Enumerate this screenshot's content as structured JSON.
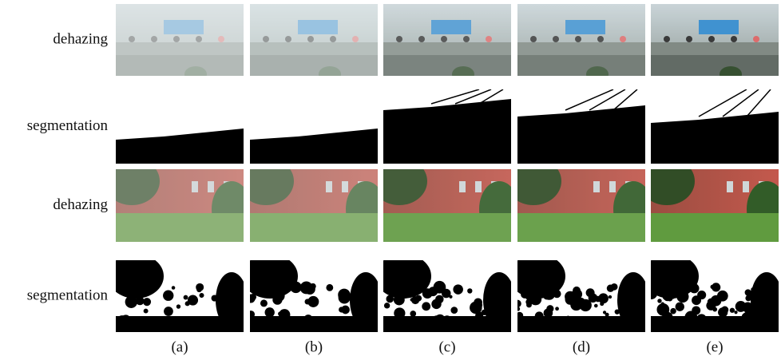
{
  "rows": [
    {
      "label": "dehazing"
    },
    {
      "label": "segmentation"
    },
    {
      "label": "dehazing"
    },
    {
      "label": "segmentation"
    }
  ],
  "columns": [
    "(a)",
    "(b)",
    "(c)",
    "(d)",
    "(e)"
  ]
}
